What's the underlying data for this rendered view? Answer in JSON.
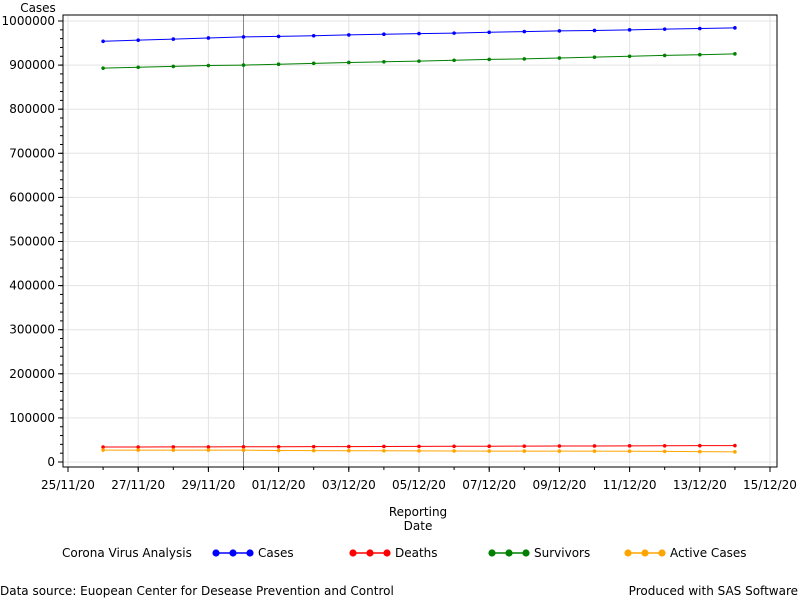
{
  "chart_data": {
    "type": "line",
    "ylabel": "Cases",
    "xlabel_line1": "Reporting",
    "xlabel_line2": "Date",
    "x_tick_labels": [
      "25/11/20",
      "27/11/20",
      "29/11/20",
      "01/12/20",
      "03/12/20",
      "05/12/20",
      "07/12/20",
      "09/12/20",
      "11/12/20",
      "13/12/20",
      "15/12/20"
    ],
    "x_tick_day_offsets": [
      0,
      2,
      4,
      6,
      8,
      10,
      12,
      14,
      16,
      18,
      20
    ],
    "y_tick_labels": [
      "0",
      "100000",
      "200000",
      "300000",
      "400000",
      "500000",
      "600000",
      "700000",
      "800000",
      "900000",
      "1000000"
    ],
    "ylim": [
      0,
      1000000
    ],
    "grid": true,
    "x": [
      "26/11/20",
      "27/11/20",
      "28/11/20",
      "29/11/20",
      "30/11/20",
      "01/12/20",
      "02/12/20",
      "03/12/20",
      "04/12/20",
      "05/12/20",
      "06/12/20",
      "07/12/20",
      "08/12/20",
      "09/12/20",
      "10/12/20",
      "11/12/20",
      "12/12/20",
      "13/12/20",
      "14/12/20"
    ],
    "reference_line_date": "30/11/20",
    "legend_title": "Corona Virus Analysis",
    "legend_position": "bottom",
    "series": [
      {
        "name": "Cases",
        "color": "#0000ff",
        "values": [
          954000,
          956500,
          959000,
          961500,
          964000,
          965000,
          966500,
          968500,
          970000,
          971500,
          972500,
          974500,
          976000,
          977500,
          978500,
          980000,
          981500,
          983000,
          984500
        ]
      },
      {
        "name": "Deaths",
        "color": "#ff0000",
        "values": [
          34000,
          34000,
          34200,
          34300,
          34500,
          34600,
          34800,
          35000,
          35200,
          35400,
          35600,
          35800,
          36000,
          36200,
          36400,
          36600,
          36800,
          37000,
          37200
        ]
      },
      {
        "name": "Survivors",
        "color": "#008000",
        "values": [
          893000,
          895000,
          897000,
          899000,
          900000,
          902000,
          904000,
          906000,
          907500,
          909000,
          911000,
          913000,
          914000,
          916000,
          918000,
          920000,
          922000,
          923500,
          925500
        ]
      },
      {
        "name": "Active Cases",
        "color": "#ffa500",
        "values": [
          27000,
          27000,
          27000,
          27000,
          27000,
          26000,
          25800,
          25600,
          25400,
          25200,
          25000,
          24800,
          24800,
          24700,
          24600,
          24500,
          24000,
          23500,
          23000
        ]
      }
    ]
  },
  "footnotes": {
    "left": "Data source: Euopean Center for Desease Prevention and Control",
    "right": "Produced with SAS Software"
  }
}
